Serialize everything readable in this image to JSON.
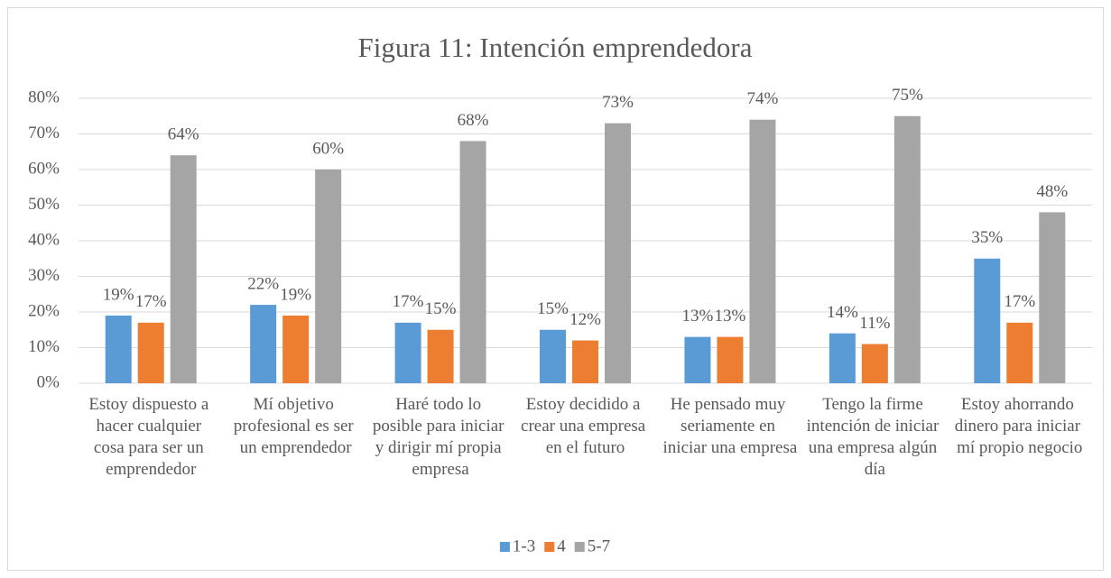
{
  "chart_data": {
    "type": "bar",
    "title": "Figura 11: Intención emprendedora",
    "categories": [
      "Estoy dispuesto a hacer cualquier cosa para ser un emprendedor",
      "Mí objetivo profesional es ser un emprendedor",
      "Haré todo lo posible para iniciar y dirigir mí propia empresa",
      "Estoy decidido a crear una empresa en el futuro",
      "He pensado muy seriamente en iniciar una empresa",
      "Tengo la firme intención de iniciar una empresa algún día",
      "Estoy ahorrando dinero para iniciar mí propio negocio"
    ],
    "series": [
      {
        "name": "1-3",
        "color": "#5b9bd5",
        "values": [
          19,
          22,
          17,
          15,
          13,
          14,
          35
        ],
        "value_labels": [
          "19%",
          "22%",
          "17%",
          "15%",
          "13%",
          "14%",
          "35%"
        ]
      },
      {
        "name": "4",
        "color": "#ed7d31",
        "values": [
          17,
          19,
          15,
          12,
          13,
          11,
          17
        ],
        "value_labels": [
          "17%",
          "19%",
          "15%",
          "12%",
          "13%",
          "11%",
          "17%"
        ]
      },
      {
        "name": "5-7",
        "color": "#a5a5a5",
        "values": [
          64,
          60,
          68,
          73,
          74,
          75,
          48
        ],
        "value_labels": [
          "64%",
          "60%",
          "68%",
          "73%",
          "74%",
          "75%",
          "48%"
        ]
      }
    ],
    "ylim": [
      0,
      80
    ],
    "yticks": [
      {
        "value": 0,
        "label": "0%"
      },
      {
        "value": 10,
        "label": "10%"
      },
      {
        "value": 20,
        "label": "20%"
      },
      {
        "value": 30,
        "label": "30%"
      },
      {
        "value": 40,
        "label": "40%"
      },
      {
        "value": 50,
        "label": "50%"
      },
      {
        "value": 60,
        "label": "60%"
      },
      {
        "value": 70,
        "label": "70%"
      },
      {
        "value": 80,
        "label": "80%"
      }
    ],
    "grid": true,
    "legend": "bottom"
  }
}
